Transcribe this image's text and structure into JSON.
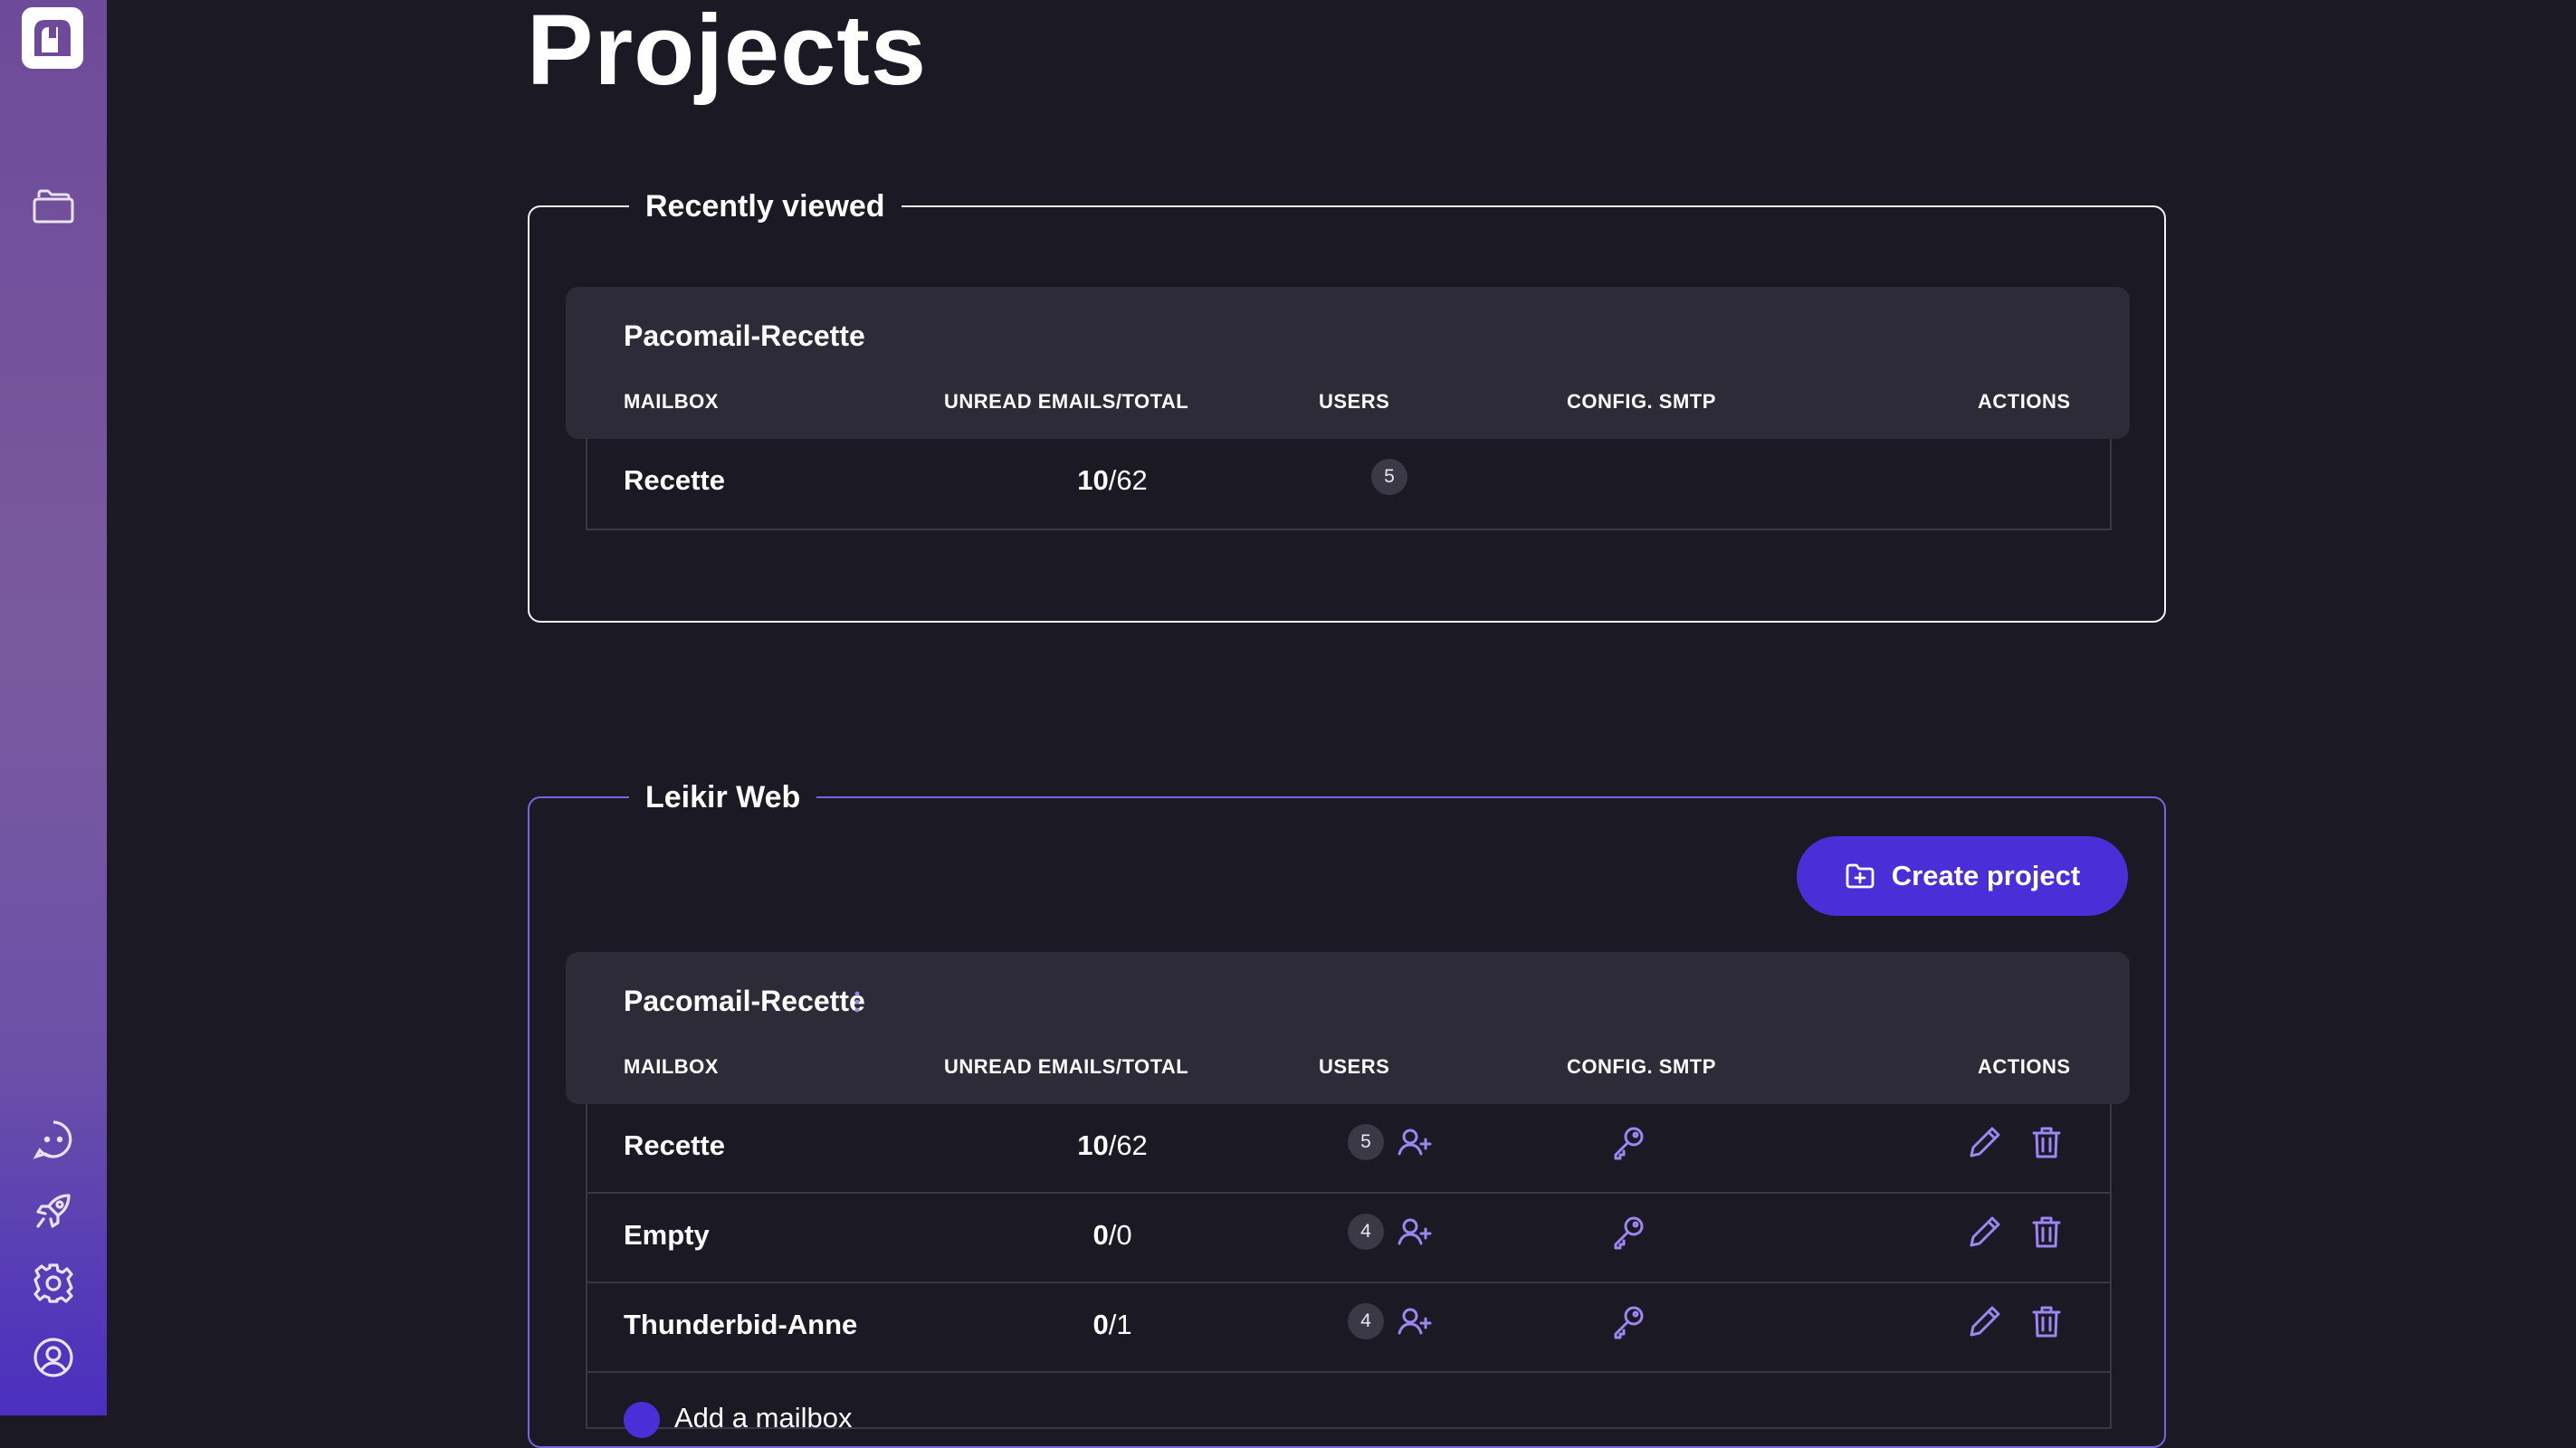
{
  "sidebar": {
    "logo_icon": "mailbox-logo-icon",
    "items": [
      {
        "name": "projects",
        "icon": "folders-icon"
      },
      {
        "name": "chat",
        "icon": "chat-bubble-icon"
      },
      {
        "name": "rocket",
        "icon": "rocket-icon"
      },
      {
        "name": "settings",
        "icon": "gear-icon"
      },
      {
        "name": "account",
        "icon": "user-circle-icon"
      }
    ]
  },
  "page": {
    "title": "Projects"
  },
  "columns": {
    "mailbox": "MAILBOX",
    "unread": "UNREAD EMAILS/TOTAL",
    "users": "USERS",
    "smtp": "CONFIG. SMTP",
    "actions": "ACTIONS"
  },
  "recent": {
    "legend": "Recently viewed",
    "card_title": "Pacomail-Recette",
    "rows": [
      {
        "name": "Recette",
        "unread": "10",
        "sep": "/",
        "total": "62",
        "users": "5"
      }
    ]
  },
  "project": {
    "legend": "Leikir Web",
    "create_label": "Create project",
    "card_title": "Pacomail-Recette",
    "rows": [
      {
        "name": "Recette",
        "unread": "10",
        "sep": "/",
        "total": "62",
        "users": "5"
      },
      {
        "name": "Empty",
        "unread": "0",
        "sep": "/",
        "total": "0",
        "users": "4"
      },
      {
        "name": "Thunderbid-Anne",
        "unread": "0",
        "sep": "/",
        "total": "1",
        "users": "4"
      }
    ],
    "add_label": "Add a mailbox"
  },
  "colors": {
    "accent": "#4a2fd8",
    "icon_accent": "#9b86f2",
    "background": "#1b1a24",
    "card": "#2d2b37"
  }
}
